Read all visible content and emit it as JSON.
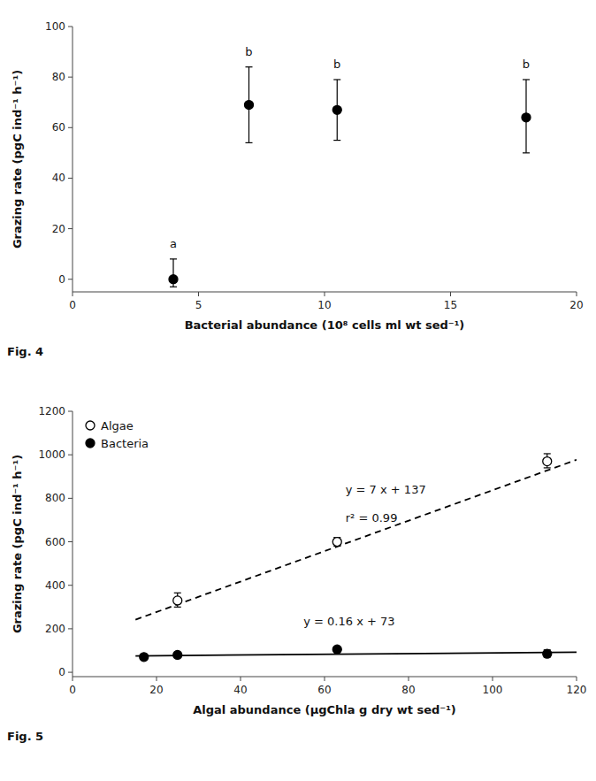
{
  "chart_data": [
    {
      "type": "scatter",
      "xlabel": "Bacterial abundance (10⁸ cells ml wt sed⁻¹)",
      "ylabel": "Grazing rate (pgC ind⁻¹ h⁻¹)",
      "caption": "Fig. 4",
      "x": [
        4,
        7,
        10.5,
        18
      ],
      "values": [
        0,
        69,
        67,
        64
      ],
      "error_upper": [
        8,
        15,
        12,
        15
      ],
      "error_lower": [
        3,
        15,
        12,
        14
      ],
      "color": "#000000",
      "marker": "circle",
      "annotations": [
        {
          "text": "a",
          "x": 4,
          "y": 11
        },
        {
          "text": "b",
          "x": 7,
          "y": 87
        },
        {
          "text": "b",
          "x": 10.5,
          "y": 82
        },
        {
          "text": "b",
          "x": 18,
          "y": 82
        }
      ],
      "xlim": [
        0,
        20
      ],
      "ylim": [
        -5,
        100
      ],
      "xticks": [
        0,
        5,
        10,
        15,
        20
      ],
      "yticks": [
        0,
        20,
        40,
        60,
        80,
        100
      ],
      "grid": false
    },
    {
      "type": "scatter",
      "xlabel": "Algal abundance (μgChla g dry wt sed⁻¹)",
      "ylabel": "Grazing rate (pgC ind⁻¹ h⁻¹)",
      "caption": "Fig. 5",
      "series": [
        {
          "type": "line",
          "line_style": "dashed",
          "color": "#000000",
          "x": [
            15,
            120
          ],
          "values": [
            242,
            977
          ]
        },
        {
          "type": "line",
          "line_style": "solid",
          "color": "#000000",
          "x": [
            15,
            120
          ],
          "values": [
            75.4,
            92.2
          ]
        },
        {
          "name": "Algae",
          "type": "scatter",
          "marker": "open-circle",
          "color": "#000000",
          "x": [
            25,
            63,
            113
          ],
          "values": [
            330,
            600,
            970
          ],
          "error_upper": [
            35,
            20,
            35
          ],
          "error_lower": [
            30,
            20,
            30
          ]
        },
        {
          "name": "Bacteria",
          "type": "scatter",
          "marker": "circle",
          "color": "#000000",
          "x": [
            17,
            25,
            63,
            113
          ],
          "values": [
            70,
            80,
            105,
            85
          ],
          "error_upper": [
            5,
            5,
            8,
            18
          ],
          "error_lower": [
            5,
            5,
            5,
            15
          ]
        }
      ],
      "annotations": [
        {
          "text": "y = 7 x + 137",
          "x": 65,
          "y": 820
        },
        {
          "text": "r² = 0.99",
          "x": 65,
          "y": 690
        },
        {
          "text": "y = 0.16 x + 73",
          "x": 55,
          "y": 215
        }
      ],
      "legend": "upper left",
      "xlim": [
        0,
        120
      ],
      "ylim": [
        -20,
        1200
      ],
      "xticks": [
        0,
        20,
        40,
        60,
        80,
        100,
        120
      ],
      "yticks": [
        0,
        200,
        400,
        600,
        800,
        1000,
        1200
      ],
      "grid": false
    }
  ]
}
